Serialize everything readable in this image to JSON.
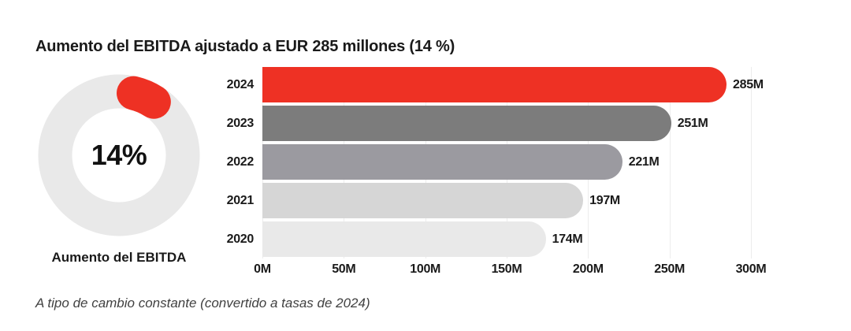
{
  "title": "Aumento del EBITDA ajustado a EUR 285 millones (14 %)",
  "footnote": "A tipo de cambio constante (convertido a tasas de 2024)",
  "colors": {
    "accent_red": "#ee3124",
    "track_gray": "#e9e9e9",
    "grid_line": "#ececec",
    "text_dark": "#1a1a1a",
    "footnote_text": "#414141"
  },
  "chart_data": [
    {
      "type": "pie",
      "subtype": "donut",
      "title": "Aumento del EBITDA",
      "value": 14,
      "values": [
        14,
        86
      ],
      "center_label": "14%",
      "caption": "Aumento del EBITDA",
      "segment_color": "#ee3124",
      "track_color": "#e9e9e9",
      "legend_position": "none"
    },
    {
      "type": "bar",
      "orientation": "horizontal",
      "categories": [
        "2024",
        "2023",
        "2022",
        "2021",
        "2020"
      ],
      "values": [
        285,
        251,
        221,
        197,
        174
      ],
      "value_labels": [
        "285M",
        "251M",
        "221M",
        "197M",
        "174M"
      ],
      "bar_colors": [
        "#ee3124",
        "#7c7c7c",
        "#9b9aa0",
        "#d6d6d6",
        "#e9e9e9"
      ],
      "xlabel": "",
      "ylabel": "",
      "xlim": [
        0,
        300
      ],
      "tick_values": [
        0,
        50,
        100,
        150,
        200,
        250,
        300
      ],
      "tick_labels": [
        "0M",
        "50M",
        "100M",
        "150M",
        "200M",
        "250M",
        "300M"
      ],
      "grid": true,
      "legend_position": "none"
    }
  ]
}
